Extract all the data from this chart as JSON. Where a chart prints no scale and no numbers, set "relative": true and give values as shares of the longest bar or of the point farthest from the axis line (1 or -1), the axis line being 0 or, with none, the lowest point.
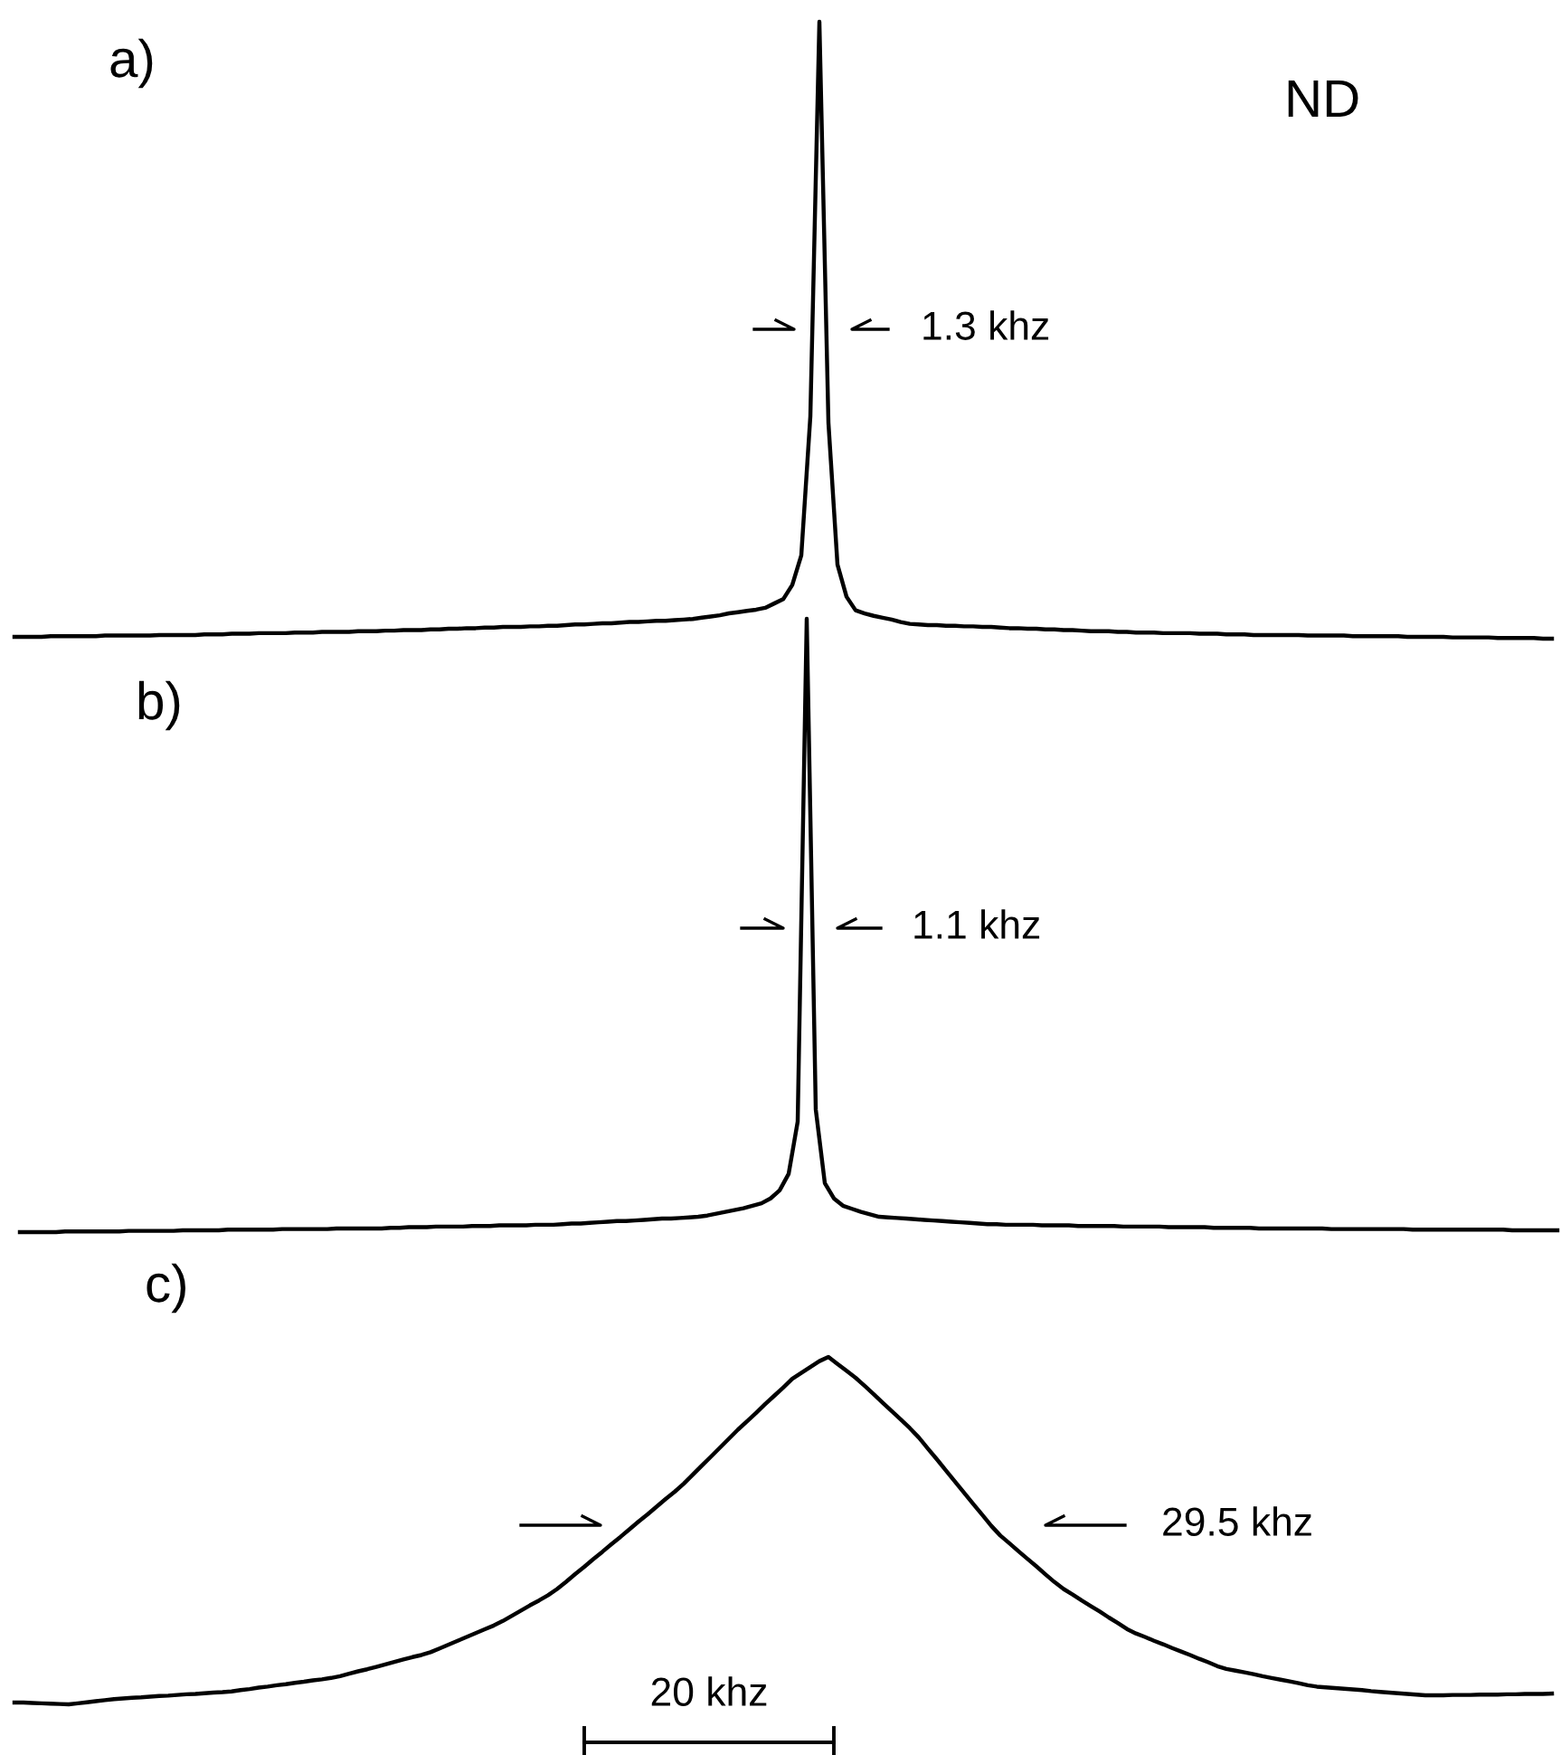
{
  "chart_data": [
    {
      "type": "line",
      "title": "a)",
      "relative": true,
      "annotations": [
        "ND",
        "1.3 khz"
      ],
      "categories": [
        null,
        null,
        null,
        null,
        null,
        null,
        null,
        null,
        null,
        null,
        null,
        null,
        null,
        null,
        null,
        null,
        null,
        null,
        null,
        null,
        null,
        null,
        null,
        null,
        null,
        null,
        null,
        null,
        null,
        null,
        null,
        null,
        null,
        null,
        null,
        null,
        null,
        null,
        null,
        null,
        null,
        null,
        null,
        null,
        null,
        null,
        null,
        null,
        null,
        null,
        null,
        null,
        null,
        null,
        null,
        null,
        null,
        null,
        null,
        null,
        null,
        null,
        null,
        null,
        null,
        null,
        null,
        null,
        null,
        null,
        null,
        null,
        null,
        null,
        null,
        null,
        null,
        null,
        null,
        null,
        null,
        null,
        null,
        null,
        null,
        null,
        null,
        null,
        null,
        null,
        null,
        null,
        null,
        null,
        null,
        null,
        null,
        null,
        null,
        null,
        null,
        null,
        null,
        null,
        null,
        null,
        null,
        null,
        null,
        null,
        null,
        null,
        null,
        null,
        null,
        null,
        null,
        null,
        null,
        null,
        null,
        null,
        null,
        null,
        null,
        null,
        null,
        null,
        null,
        null,
        null,
        null,
        null,
        null,
        null,
        null,
        null,
        null,
        null,
        null,
        null,
        null,
        null,
        null,
        null,
        null,
        null,
        null,
        null,
        null,
        null,
        null,
        null,
        null,
        null,
        null,
        null,
        null,
        null,
        null,
        null,
        null,
        null,
        null,
        null,
        null,
        null,
        null,
        null,
        null,
        null
      ],
      "series": [
        {
          "color": "#000000",
          "values": [
            0.003,
            0.003,
            0.003,
            0.003,
            0.004,
            0.004,
            0.004,
            0.004,
            0.004,
            0.004,
            0.005,
            0.005,
            0.005,
            0.005,
            0.005,
            0.005,
            0.006,
            0.006,
            0.006,
            0.006,
            0.006,
            0.007,
            0.007,
            0.007,
            0.008,
            0.008,
            0.008,
            0.009,
            0.009,
            0.009,
            0.009,
            0.01,
            0.01,
            0.01,
            0.011,
            0.011,
            0.011,
            0.011,
            0.012,
            0.012,
            0.012,
            0.013,
            0.013,
            0.014,
            0.014,
            0.014,
            0.015,
            0.015,
            0.016,
            0.016,
            0.017,
            0.017,
            0.018,
            0.018,
            0.019,
            0.019,
            0.019,
            0.02,
            0.02,
            0.021,
            0.021,
            0.022,
            0.023,
            0.023,
            0.024,
            0.025,
            0.025,
            0.026,
            0.027,
            0.027,
            0.028,
            0.029,
            0.029,
            0.03,
            0.031,
            0.032,
            0.034,
            0.036,
            0.038,
            0.041,
            0.043,
            0.045,
            0.047,
            0.05,
            0.057,
            0.064,
            0.087,
            0.135,
            0.36,
            1,
            0.35,
            0.12,
            0.068,
            0.046,
            0.041,
            0.037,
            0.034,
            0.031,
            0.027,
            0.024,
            0.023,
            0.022,
            0.022,
            0.021,
            0.021,
            0.02,
            0.02,
            0.019,
            0.019,
            0.018,
            0.017,
            0.017,
            0.016,
            0.016,
            0.015,
            0.015,
            0.014,
            0.014,
            0.013,
            0.012,
            0.012,
            0.012,
            0.011,
            0.011,
            0.01,
            0.01,
            0.01,
            0.009,
            0.009,
            0.009,
            0.009,
            0.008,
            0.008,
            0.008,
            0.007,
            0.007,
            0.007,
            0.006,
            0.006,
            0.006,
            0.006,
            0.006,
            0.006,
            0.005,
            0.005,
            0.005,
            0.005,
            0.005,
            0.004,
            0.004,
            0.004,
            0.004,
            0.004,
            0.004,
            0.003,
            0.003,
            0.003,
            0.003,
            0.003,
            0.002,
            0.002,
            0.002,
            0.002,
            0.002,
            0.001,
            0.001,
            0.001,
            0.001,
            0.001,
            0,
            0
          ]
        }
      ]
    },
    {
      "type": "line",
      "title": "b)",
      "relative": true,
      "annotations": [
        "1.1 khz"
      ],
      "categories": [
        null,
        null,
        null,
        null,
        null,
        null,
        null,
        null,
        null,
        null,
        null,
        null,
        null,
        null,
        null,
        null,
        null,
        null,
        null,
        null,
        null,
        null,
        null,
        null,
        null,
        null,
        null,
        null,
        null,
        null,
        null,
        null,
        null,
        null,
        null,
        null,
        null,
        null,
        null,
        null,
        null,
        null,
        null,
        null,
        null,
        null,
        null,
        null,
        null,
        null,
        null,
        null,
        null,
        null,
        null,
        null,
        null,
        null,
        null,
        null,
        null,
        null,
        null,
        null,
        null,
        null,
        null,
        null,
        null,
        null,
        null,
        null,
        null,
        null,
        null,
        null,
        null,
        null,
        null,
        null,
        null,
        null,
        null,
        null,
        null,
        null,
        null,
        null,
        null,
        null,
        null,
        null,
        null,
        null,
        null,
        null,
        null,
        null,
        null,
        null,
        null,
        null,
        null,
        null,
        null,
        null,
        null,
        null,
        null,
        null,
        null,
        null,
        null,
        null,
        null,
        null,
        null,
        null,
        null,
        null,
        null,
        null,
        null,
        null,
        null,
        null,
        null,
        null,
        null,
        null,
        null,
        null,
        null,
        null,
        null,
        null,
        null,
        null,
        null,
        null,
        null,
        null,
        null,
        null,
        null,
        null,
        null,
        null,
        null,
        null,
        null,
        null,
        null,
        null,
        null,
        null,
        null,
        null,
        null,
        null,
        null,
        null,
        null,
        null,
        null,
        null,
        null,
        null,
        null,
        null,
        null
      ],
      "series": [
        {
          "color": "#000000",
          "values": [
            0,
            0,
            0,
            0,
            0,
            0.001,
            0.001,
            0.001,
            0.001,
            0.001,
            0.001,
            0.001,
            0.002,
            0.002,
            0.002,
            0.002,
            0.002,
            0.002,
            0.003,
            0.003,
            0.003,
            0.003,
            0.003,
            0.004,
            0.004,
            0.004,
            0.004,
            0.004,
            0.004,
            0.005,
            0.005,
            0.005,
            0.005,
            0.005,
            0.005,
            0.006,
            0.006,
            0.006,
            0.006,
            0.006,
            0.006,
            0.007,
            0.007,
            0.008,
            0.008,
            0.008,
            0.009,
            0.009,
            0.009,
            0.009,
            0.01,
            0.01,
            0.01,
            0.011,
            0.011,
            0.011,
            0.011,
            0.012,
            0.012,
            0.012,
            0.013,
            0.014,
            0.014,
            0.015,
            0.016,
            0.017,
            0.018,
            0.018,
            0.019,
            0.02,
            0.021,
            0.022,
            0.022,
            0.023,
            0.024,
            0.025,
            0.027,
            0.03,
            0.033,
            0.036,
            0.039,
            0.043,
            0.047,
            0.055,
            0.068,
            0.095,
            0.18,
            1,
            0.2,
            0.08,
            0.055,
            0.043,
            0.038,
            0.033,
            0.029,
            0.025,
            0.024,
            0.023,
            0.022,
            0.021,
            0.02,
            0.019,
            0.018,
            0.017,
            0.016,
            0.015,
            0.014,
            0.013,
            0.013,
            0.012,
            0.012,
            0.012,
            0.012,
            0.011,
            0.011,
            0.011,
            0.011,
            0.01,
            0.01,
            0.01,
            0.01,
            0.01,
            0.009,
            0.009,
            0.009,
            0.009,
            0.009,
            0.008,
            0.008,
            0.008,
            0.008,
            0.008,
            0.007,
            0.007,
            0.007,
            0.007,
            0.007,
            0.006,
            0.006,
            0.006,
            0.006,
            0.006,
            0.006,
            0.006,
            0.006,
            0.005,
            0.005,
            0.005,
            0.005,
            0.005,
            0.005,
            0.005,
            0.005,
            0.005,
            0.004,
            0.004,
            0.004,
            0.004,
            0.004,
            0.004,
            0.004,
            0.004,
            0.004,
            0.004,
            0.004,
            0.003,
            0.003,
            0.003,
            0.003,
            0.003,
            0.003
          ]
        }
      ]
    },
    {
      "type": "line",
      "title": "c)",
      "relative": true,
      "annotations": [
        "29.5 khz",
        "20 khz"
      ],
      "categories": [
        null,
        null,
        null,
        null,
        null,
        null,
        null,
        null,
        null,
        null,
        null,
        null,
        null,
        null,
        null,
        null,
        null,
        null,
        null,
        null,
        null,
        null,
        null,
        null,
        null,
        null,
        null,
        null,
        null,
        null,
        null,
        null,
        null,
        null,
        null,
        null,
        null,
        null,
        null,
        null,
        null,
        null,
        null,
        null,
        null,
        null,
        null,
        null,
        null,
        null,
        null,
        null,
        null,
        null,
        null,
        null,
        null,
        null,
        null,
        null,
        null,
        null,
        null,
        null,
        null,
        null,
        null,
        null,
        null,
        null,
        null,
        null,
        null,
        null,
        null,
        null,
        null,
        null,
        null,
        null,
        null,
        null,
        null,
        null,
        null,
        null,
        null,
        null,
        null,
        null,
        null,
        null,
        null,
        null,
        null,
        null,
        null,
        null,
        null,
        null,
        null,
        null,
        null,
        null,
        null,
        null,
        null,
        null,
        null,
        null,
        null,
        null,
        null,
        null,
        null,
        null,
        null,
        null,
        null,
        null,
        null,
        null,
        null,
        null,
        null,
        null,
        null,
        null,
        null,
        null,
        null,
        null,
        null,
        null,
        null,
        null,
        null,
        null,
        null,
        null,
        null,
        null,
        null,
        null,
        null,
        null,
        null,
        null,
        null,
        null,
        null,
        null,
        null,
        null,
        null,
        null,
        null,
        null,
        null,
        null,
        null,
        null,
        null,
        null,
        null,
        null,
        null,
        null,
        null,
        null,
        null
      ],
      "series": [
        {
          "color": "#000000",
          "values": [
            0.005,
            0.005,
            0.004,
            0.003,
            0.002,
            0.001,
            0,
            0.003,
            0.006,
            0.009,
            0.012,
            0.015,
            0.017,
            0.019,
            0.02,
            0.022,
            0.024,
            0.025,
            0.027,
            0.029,
            0.03,
            0.032,
            0.034,
            0.035,
            0.037,
            0.041,
            0.044,
            0.048,
            0.051,
            0.055,
            0.058,
            0.062,
            0.065,
            0.069,
            0.072,
            0.076,
            0.081,
            0.088,
            0.095,
            0.101,
            0.108,
            0.115,
            0.122,
            0.129,
            0.136,
            0.142,
            0.15,
            0.161,
            0.172,
            0.183,
            0.194,
            0.205,
            0.216,
            0.227,
            0.24,
            0.255,
            0.27,
            0.285,
            0.299,
            0.314,
            0.332,
            0.353,
            0.375,
            0.396,
            0.418,
            0.439,
            0.461,
            0.482,
            0.504,
            0.526,
            0.547,
            0.569,
            0.591,
            0.612,
            0.635,
            0.661,
            0.687,
            0.713,
            0.739,
            0.765,
            0.791,
            0.815,
            0.839,
            0.864,
            0.888,
            0.912,
            0.937,
            0.954,
            0.971,
            0.988,
            1,
            0.98,
            0.96,
            0.94,
            0.917,
            0.893,
            0.868,
            0.844,
            0.82,
            0.795,
            0.768,
            0.736,
            0.705,
            0.673,
            0.641,
            0.609,
            0.577,
            0.546,
            0.514,
            0.486,
            0.464,
            0.441,
            0.419,
            0.397,
            0.374,
            0.352,
            0.332,
            0.316,
            0.299,
            0.283,
            0.267,
            0.25,
            0.234,
            0.217,
            0.204,
            0.194,
            0.183,
            0.173,
            0.162,
            0.152,
            0.142,
            0.131,
            0.121,
            0.11,
            0.102,
            0.097,
            0.092,
            0.087,
            0.081,
            0.076,
            0.071,
            0.066,
            0.061,
            0.055,
            0.051,
            0.049,
            0.047,
            0.045,
            0.043,
            0.041,
            0.038,
            0.036,
            0.034,
            0.032,
            0.03,
            0.028,
            0.026,
            0.026,
            0.026,
            0.027,
            0.027,
            0.027,
            0.028,
            0.028,
            0.028,
            0.029,
            0.029,
            0.03,
            0.03,
            0.03,
            0.031
          ]
        }
      ]
    }
  ]
}
